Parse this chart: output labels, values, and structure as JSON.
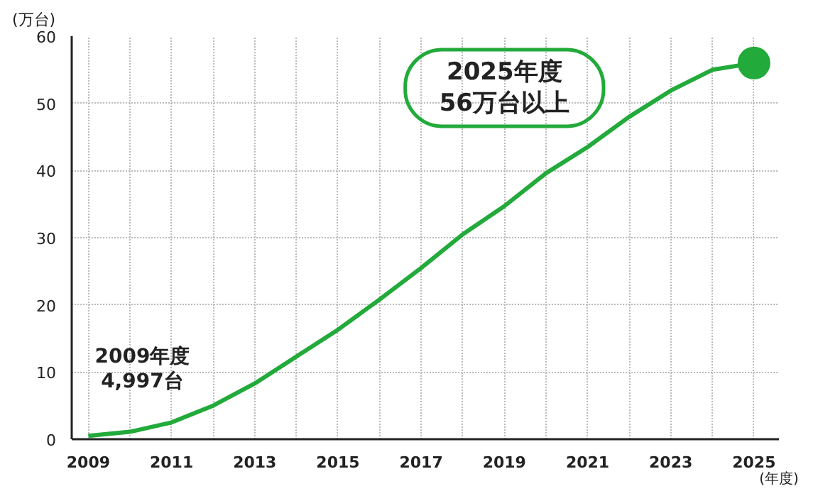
{
  "chart_data": {
    "type": "line",
    "ylabel": "(万台)",
    "xlabel": "(年度)",
    "x": [
      2009,
      2010,
      2011,
      2012,
      2013,
      2014,
      2015,
      2016,
      2017,
      2018,
      2019,
      2020,
      2021,
      2022,
      2023,
      2024,
      2025
    ],
    "series": [
      {
        "color": "#22aa3a",
        "values": [
          0.5,
          1.1,
          2.5,
          5.0,
          8.3,
          12.3,
          16.3,
          20.8,
          25.5,
          30.5,
          34.7,
          39.6,
          43.5,
          48.0,
          51.9,
          55.0,
          56.0
        ]
      },
      {
        "type": "scatter",
        "color": "#22aa3a",
        "x": [
          2025
        ],
        "values": [
          56
        ]
      }
    ],
    "xlim": [
      2008.6,
      2025.6
    ],
    "ylim": [
      0,
      60
    ],
    "xticks": [
      2009,
      {
        "value": 2010,
        "label": null
      },
      2011,
      {
        "value": 2012,
        "label": null
      },
      2013,
      {
        "value": 2014,
        "label": null
      },
      2015,
      {
        "value": 2016,
        "label": null
      },
      2017,
      {
        "value": 2018,
        "label": null
      },
      2019,
      {
        "value": 2020,
        "label": null
      },
      2021,
      {
        "value": 2022,
        "label": null
      },
      2023,
      {
        "value": 2024,
        "label": null
      },
      2025
    ],
    "yticks": [
      0,
      10,
      20,
      30,
      40,
      50,
      60
    ],
    "grid": true,
    "line_style": "solid",
    "annotations": [
      {
        "text": "2009年度\n4,997台",
        "x": 2009,
        "y": 0.5
      },
      "2025年度\n56万台以上"
    ]
  }
}
